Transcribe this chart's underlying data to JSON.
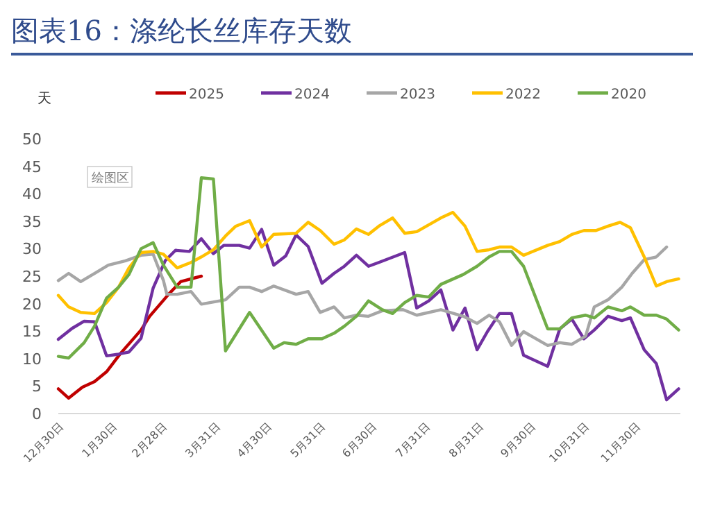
{
  "chart_data": {
    "type": "line",
    "title": "图表16：涤纶长丝库存天数",
    "ylabel": "天",
    "annotations": [
      "绘图区"
    ],
    "legend": "top",
    "grid": false,
    "marker": "none",
    "line_style": "solid",
    "xlim": [
      "2024-12-30",
      "2025-12-26"
    ],
    "xticks": [
      {
        "value": "2024-12-30",
        "label": "12月30日"
      },
      {
        "value": "2025-01-30",
        "label": "1月30日"
      },
      {
        "value": "2025-02-28",
        "label": "2月28日"
      },
      {
        "value": "2025-03-31",
        "label": "3月31日"
      },
      {
        "value": "2025-04-30",
        "label": "4月30日"
      },
      {
        "value": "2025-05-31",
        "label": "5月31日"
      },
      {
        "value": "2025-06-30",
        "label": "6月30日"
      },
      {
        "value": "2025-07-31",
        "label": "7月31日"
      },
      {
        "value": "2025-08-31",
        "label": "8月31日"
      },
      {
        "value": "2025-09-30",
        "label": "9月30日"
      },
      {
        "value": "2025-10-31",
        "label": "10月31日"
      },
      {
        "value": "2025-11-30",
        "label": "11月30日"
      }
    ],
    "ylim": [
      0,
      50
    ],
    "yticks": [
      0,
      5,
      10,
      15,
      20,
      25,
      30,
      35,
      40,
      45,
      50
    ],
    "series": [
      {
        "name": "2025",
        "color": "#c00000",
        "x": [
          "2024-12-30",
          "2025-01-05",
          "2025-01-13",
          "2025-01-20",
          "2025-01-27",
          "2025-02-04",
          "2025-02-11",
          "2025-02-16",
          "2025-02-21",
          "2025-03-04",
          "2025-03-11",
          "2025-03-23"
        ],
        "values": [
          4.5,
          2.8,
          4.8,
          5.8,
          7.6,
          10.9,
          13.4,
          15.2,
          17.7,
          21.7,
          24,
          25
        ]
      },
      {
        "name": "2024",
        "color": "#7030a0",
        "x": [
          "2024-12-30",
          "2025-01-07",
          "2025-01-14",
          "2025-01-20",
          "2025-01-27",
          "2025-02-03",
          "2025-02-09",
          "2025-02-16",
          "2025-02-23",
          "2025-03-02",
          "2025-03-08",
          "2025-03-16",
          "2025-03-23",
          "2025-03-30",
          "2025-04-05",
          "2025-04-14",
          "2025-04-20",
          "2025-04-27",
          "2025-05-04",
          "2025-05-11",
          "2025-05-17",
          "2025-05-24",
          "2025-06-01",
          "2025-06-08",
          "2025-06-14",
          "2025-06-21",
          "2025-06-28",
          "2025-07-04",
          "2025-07-19",
          "2025-07-26",
          "2025-08-02",
          "2025-08-09",
          "2025-08-16",
          "2025-08-23",
          "2025-08-30",
          "2025-09-05",
          "2025-09-12",
          "2025-09-19",
          "2025-09-26",
          "2025-10-10",
          "2025-10-17",
          "2025-10-24",
          "2025-10-31",
          "2025-11-06",
          "2025-11-14",
          "2025-11-22",
          "2025-11-27",
          "2025-12-05",
          "2025-12-12",
          "2025-12-18",
          "2025-12-25"
        ],
        "values": [
          13.5,
          15.5,
          16.8,
          16.7,
          10.5,
          10.8,
          11.2,
          13.7,
          22.8,
          27.8,
          29.7,
          29.5,
          31.8,
          29.1,
          30.6,
          30.6,
          30.1,
          33.5,
          27,
          28.7,
          32.5,
          30.4,
          23.7,
          25.5,
          26.8,
          28.8,
          26.8,
          27.5,
          29.3,
          19.2,
          20.5,
          22.5,
          15.2,
          19.2,
          11.6,
          14.9,
          18.2,
          18.2,
          10.6,
          8.6,
          15.4,
          17.2,
          13.6,
          15.2,
          17.7,
          16.9,
          17.4,
          11.6,
          9.1,
          2.5,
          4.5
        ]
      },
      {
        "name": "2023",
        "color": "#a6a6a6",
        "x": [
          "2024-12-30",
          "2025-01-05",
          "2025-01-12",
          "2025-01-20",
          "2025-01-28",
          "2025-02-07",
          "2025-02-16",
          "2025-02-23",
          "2025-03-01",
          "2025-03-03",
          "2025-03-09",
          "2025-03-17",
          "2025-03-23",
          "2025-04-06",
          "2025-04-14",
          "2025-04-20",
          "2025-04-27",
          "2025-05-04",
          "2025-05-17",
          "2025-05-24",
          "2025-05-31",
          "2025-06-08",
          "2025-06-14",
          "2025-06-21",
          "2025-06-28",
          "2025-07-06",
          "2025-07-18",
          "2025-07-26",
          "2025-08-09",
          "2025-08-22",
          "2025-08-30",
          "2025-09-06",
          "2025-09-12",
          "2025-09-19",
          "2025-09-26",
          "2025-10-10",
          "2025-10-17",
          "2025-10-24",
          "2025-11-01",
          "2025-11-06",
          "2025-11-14",
          "2025-11-22",
          "2025-11-28",
          "2025-12-05",
          "2025-12-12",
          "2025-12-18"
        ],
        "values": [
          24.2,
          25.5,
          24,
          25.5,
          27,
          27.8,
          28.8,
          29,
          24.2,
          21.7,
          21.7,
          22.2,
          19.9,
          20.7,
          23,
          23,
          22.2,
          23.2,
          21.7,
          22.2,
          18.4,
          19.4,
          17.4,
          17.9,
          17.7,
          18.7,
          18.9,
          17.9,
          18.9,
          17.7,
          16.4,
          17.9,
          16.7,
          12.4,
          14.9,
          12.4,
          12.9,
          12.6,
          14.1,
          19.4,
          20.7,
          23,
          25.5,
          28,
          28.5,
          30.3
        ]
      },
      {
        "name": "2022",
        "color": "#ffc000",
        "x": [
          "2024-12-30",
          "2025-01-05",
          "2025-01-12",
          "2025-01-20",
          "2025-01-27",
          "2025-02-03",
          "2025-02-09",
          "2025-02-16",
          "2025-02-23",
          "2025-03-01",
          "2025-03-09",
          "2025-03-17",
          "2025-03-23",
          "2025-03-30",
          "2025-04-06",
          "2025-04-12",
          "2025-04-20",
          "2025-04-27",
          "2025-05-04",
          "2025-05-17",
          "2025-05-24",
          "2025-05-31",
          "2025-06-08",
          "2025-06-14",
          "2025-06-21",
          "2025-06-28",
          "2025-07-04",
          "2025-07-12",
          "2025-07-19",
          "2025-07-26",
          "2025-08-09",
          "2025-08-16",
          "2025-08-23",
          "2025-08-30",
          "2025-09-06",
          "2025-09-12",
          "2025-09-19",
          "2025-09-26",
          "2025-10-10",
          "2025-10-17",
          "2025-10-24",
          "2025-10-31",
          "2025-11-07",
          "2025-11-14",
          "2025-11-21",
          "2025-11-27",
          "2025-12-05",
          "2025-12-12",
          "2025-12-18",
          "2025-12-25"
        ],
        "values": [
          21.5,
          19.4,
          18.4,
          18.2,
          20.2,
          23,
          26.5,
          29.3,
          29.5,
          29,
          26.5,
          27.5,
          28.5,
          29.8,
          32.3,
          34.1,
          35.1,
          30.3,
          32.6,
          32.8,
          34.8,
          33.3,
          30.8,
          31.6,
          33.6,
          32.6,
          34.1,
          35.6,
          32.8,
          33.1,
          35.6,
          36.6,
          34.1,
          29.5,
          29.8,
          30.3,
          30.3,
          28.8,
          30.6,
          31.3,
          32.6,
          33.3,
          33.3,
          34.1,
          34.8,
          33.8,
          28.5,
          23.2,
          24,
          24.5
        ]
      },
      {
        "name": "2020",
        "color": "#70ad47",
        "x": [
          "2024-12-30",
          "2025-01-05",
          "2025-01-14",
          "2025-01-20",
          "2025-01-27",
          "2025-02-03",
          "2025-02-09",
          "2025-02-16",
          "2025-02-23",
          "2025-03-01",
          "2025-03-09",
          "2025-03-17",
          "2025-03-23",
          "2025-03-30",
          "2025-04-06",
          "2025-04-20",
          "2025-05-04",
          "2025-05-10",
          "2025-05-17",
          "2025-05-24",
          "2025-06-01",
          "2025-06-08",
          "2025-06-14",
          "2025-06-21",
          "2025-06-28",
          "2025-07-06",
          "2025-07-12",
          "2025-07-19",
          "2025-07-26",
          "2025-08-02",
          "2025-08-09",
          "2025-08-22",
          "2025-08-30",
          "2025-09-06",
          "2025-09-12",
          "2025-09-19",
          "2025-09-26",
          "2025-10-10",
          "2025-10-17",
          "2025-10-24",
          "2025-11-01",
          "2025-11-06",
          "2025-11-14",
          "2025-11-22",
          "2025-11-27",
          "2025-12-05",
          "2025-12-12",
          "2025-12-18",
          "2025-12-25"
        ],
        "values": [
          10.4,
          10.1,
          12.9,
          15.9,
          21,
          23,
          25.3,
          30,
          31.1,
          27,
          23,
          23,
          42.9,
          42.7,
          11.4,
          18.4,
          11.9,
          12.9,
          12.6,
          13.6,
          13.6,
          14.6,
          15.9,
          17.7,
          20.5,
          18.9,
          18.2,
          20.2,
          21.5,
          21.2,
          23.5,
          25.3,
          26.8,
          28.5,
          29.5,
          29.5,
          26.8,
          15.4,
          15.4,
          17.4,
          17.9,
          17.4,
          19.4,
          18.7,
          19.4,
          17.9,
          17.9,
          17.2,
          15.2
        ]
      }
    ]
  }
}
